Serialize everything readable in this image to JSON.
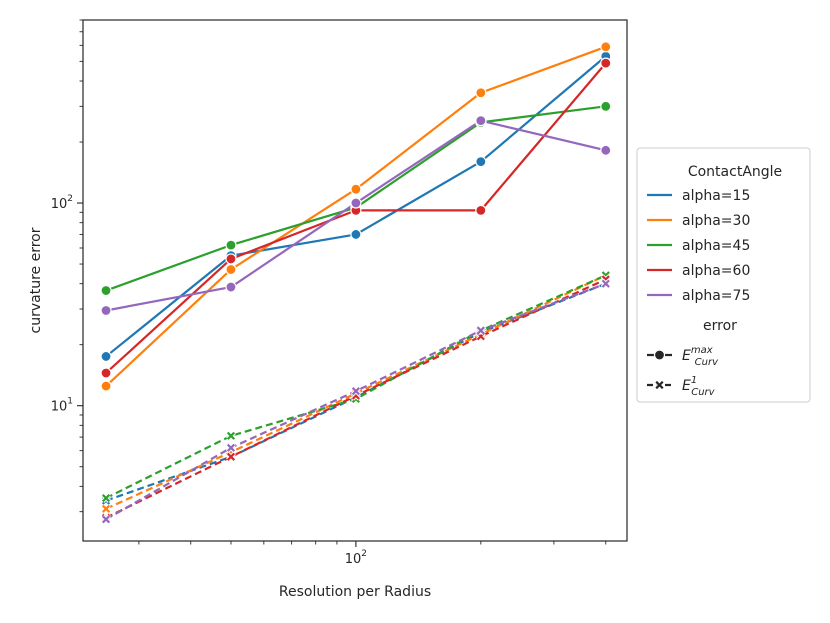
{
  "chart_data": {
    "type": "line",
    "xlabel": "Resolution per Radius",
    "ylabel": "curvature error",
    "x_scale": "log",
    "y_scale": "log",
    "x": [
      25,
      50,
      100,
      200,
      400
    ],
    "xlim": [
      22,
      450
    ],
    "ylim": [
      2.15,
      800
    ],
    "x_ticks": [
      {
        "value": 100,
        "base": "10",
        "exp": "2"
      }
    ],
    "y_ticks": [
      {
        "value": 10,
        "base": "10",
        "exp": "1"
      },
      {
        "value": 100,
        "base": "10",
        "exp": "2"
      }
    ],
    "grid": false,
    "legend": {
      "placement": "right-outside",
      "hue_title": "ContactAngle",
      "style_title": "error",
      "style_entries": [
        {
          "base": "E",
          "sup": "max",
          "sub": "Curv",
          "linestyle": "solid",
          "marker": "circle"
        },
        {
          "base": "E",
          "sup": "1",
          "sub": "Curv",
          "linestyle": "dashed",
          "marker": "x"
        }
      ]
    },
    "series": [
      {
        "name": "alpha=15",
        "color": "#1f77b4",
        "max": [
          17.5,
          55,
          70,
          160,
          530
        ],
        "l1": [
          3.4,
          5.6,
          11,
          23,
          40
        ]
      },
      {
        "name": "alpha=30",
        "color": "#ff7f0e",
        "max": [
          12.5,
          47,
          117,
          350,
          590
        ],
        "l1": [
          3.1,
          5.9,
          11.5,
          22.5,
          44
        ]
      },
      {
        "name": "alpha=45",
        "color": "#2ca02c",
        "max": [
          37,
          62,
          95,
          250,
          300
        ],
        "l1": [
          3.5,
          7.1,
          10.8,
          23.5,
          44
        ]
      },
      {
        "name": "alpha=60",
        "color": "#d62728",
        "max": [
          14.5,
          53,
          92,
          92,
          490
        ],
        "l1": [
          2.8,
          5.6,
          11.2,
          22,
          42
        ]
      },
      {
        "name": "alpha=75",
        "color": "#9467bd",
        "max": [
          29.5,
          38.5,
          100,
          255,
          182
        ],
        "l1": [
          2.75,
          6.2,
          11.8,
          23.5,
          40
        ]
      }
    ]
  }
}
